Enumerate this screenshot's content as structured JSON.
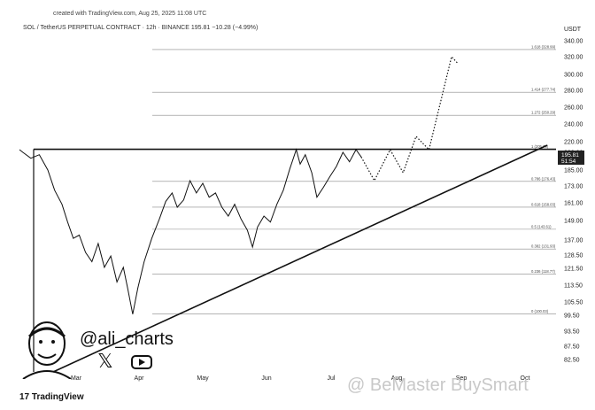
{
  "header": {
    "created": "created with TradingView.com, Aug 25, 2025 11:08 UTC",
    "symbol": "SOL / TetherUS PERPETUAL CONTRACT · 12h · BINANCE",
    "price": "195.81",
    "change": "−10.28 (−4.99%)",
    "currency": "USDT"
  },
  "branding": {
    "tradingview": "TradingView",
    "handle": "@ali_charts",
    "x_icon": "x-logo-icon",
    "youtube_icon": "youtube-play-icon",
    "watermark": "@ BeMaster BuySmart"
  },
  "colors": {
    "line": "#111111",
    "fib": "#888888",
    "price_bg": "#222222",
    "background": "#ffffff"
  },
  "chart_data": {
    "type": "line",
    "ytick_labels": [
      "340.00",
      "320.00",
      "300.00",
      "280.00",
      "260.00",
      "240.00",
      "220.00",
      "200.00",
      "185.00",
      "173.00",
      "161.00",
      "149.00",
      "137.00",
      "128.50",
      "121.50",
      "113.50",
      "105.50",
      "99.50",
      "93.50",
      "87.50",
      "82.50"
    ],
    "xtick_labels": [
      "Mar",
      "Apr",
      "May",
      "Jun",
      "Jul",
      "Aug",
      "Sep",
      "Oct"
    ],
    "ylim": [
      82.5,
      340
    ],
    "price_labels": {
      "last": "195.81",
      "countdown": "51:54"
    },
    "fib_levels": [
      {
        "label": "1.618 (328.99)",
        "value": 328.99
      },
      {
        "label": "1.414 (277.74)",
        "value": 277.74
      },
      {
        "label": "1.272 (250.29)",
        "value": 250.29
      },
      {
        "label": "1 (205.79)",
        "value": 205.79
      },
      {
        "label": "0.786 (176.43)",
        "value": 176.43
      },
      {
        "label": "0.618 (158.03)",
        "value": 158.03
      },
      {
        "label": "0.5 (143.61)",
        "value": 143.61
      },
      {
        "label": "0.382 (131.93)",
        "value": 131.93
      },
      {
        "label": "0.236 (118.77)",
        "value": 118.77
      },
      {
        "label": "0 (100.03)",
        "value": 100.03
      }
    ],
    "resistance_value": 205.79,
    "support_line": [
      {
        "x": "Mar",
        "y": 84
      },
      {
        "x": "Oct",
        "y": 205
      }
    ],
    "price_series": [
      {
        "t": 0.0,
        "y": 205
      },
      {
        "t": 0.06,
        "y": 200
      },
      {
        "t": 0.2,
        "y": 195
      },
      {
        "t": 0.35,
        "y": 198
      },
      {
        "t": 0.5,
        "y": 185
      },
      {
        "t": 0.62,
        "y": 170
      },
      {
        "t": 0.75,
        "y": 160
      },
      {
        "t": 0.85,
        "y": 148
      },
      {
        "t": 0.95,
        "y": 138
      },
      {
        "t": 1.05,
        "y": 140
      },
      {
        "t": 1.15,
        "y": 130
      },
      {
        "t": 1.25,
        "y": 125
      },
      {
        "t": 1.35,
        "y": 135
      },
      {
        "t": 1.45,
        "y": 122
      },
      {
        "t": 1.55,
        "y": 128
      },
      {
        "t": 1.65,
        "y": 115
      },
      {
        "t": 1.75,
        "y": 122
      },
      {
        "t": 1.82,
        "y": 112
      },
      {
        "t": 1.9,
        "y": 100
      },
      {
        "t": 1.98,
        "y": 112
      },
      {
        "t": 2.08,
        "y": 125
      },
      {
        "t": 2.2,
        "y": 138
      },
      {
        "t": 2.32,
        "y": 150
      },
      {
        "t": 2.42,
        "y": 162
      },
      {
        "t": 2.52,
        "y": 168
      },
      {
        "t": 2.6,
        "y": 158
      },
      {
        "t": 2.7,
        "y": 163
      },
      {
        "t": 2.8,
        "y": 177
      },
      {
        "t": 2.9,
        "y": 168
      },
      {
        "t": 3.0,
        "y": 175
      },
      {
        "t": 3.1,
        "y": 165
      },
      {
        "t": 3.2,
        "y": 168
      },
      {
        "t": 3.3,
        "y": 158
      },
      {
        "t": 3.4,
        "y": 152
      },
      {
        "t": 3.5,
        "y": 160
      },
      {
        "t": 3.6,
        "y": 150
      },
      {
        "t": 3.7,
        "y": 143
      },
      {
        "t": 3.78,
        "y": 133
      },
      {
        "t": 3.86,
        "y": 145
      },
      {
        "t": 3.96,
        "y": 152
      },
      {
        "t": 4.06,
        "y": 148
      },
      {
        "t": 4.16,
        "y": 160
      },
      {
        "t": 4.26,
        "y": 170
      },
      {
        "t": 4.36,
        "y": 186
      },
      {
        "t": 4.46,
        "y": 205
      },
      {
        "t": 4.52,
        "y": 190
      },
      {
        "t": 4.6,
        "y": 198
      },
      {
        "t": 4.7,
        "y": 183
      },
      {
        "t": 4.78,
        "y": 165
      },
      {
        "t": 4.88,
        "y": 172
      },
      {
        "t": 4.98,
        "y": 180
      },
      {
        "t": 5.08,
        "y": 188
      },
      {
        "t": 5.18,
        "y": 200
      },
      {
        "t": 5.28,
        "y": 192
      },
      {
        "t": 5.38,
        "y": 205
      },
      {
        "t": 5.46,
        "y": 196
      }
    ],
    "projection": [
      {
        "t": 5.46,
        "y": 196
      },
      {
        "t": 5.66,
        "y": 177
      },
      {
        "t": 5.9,
        "y": 205
      },
      {
        "t": 6.1,
        "y": 183
      },
      {
        "t": 6.3,
        "y": 226
      },
      {
        "t": 6.5,
        "y": 205
      },
      {
        "t": 6.85,
        "y": 320
      },
      {
        "t": 6.95,
        "y": 312
      }
    ]
  }
}
